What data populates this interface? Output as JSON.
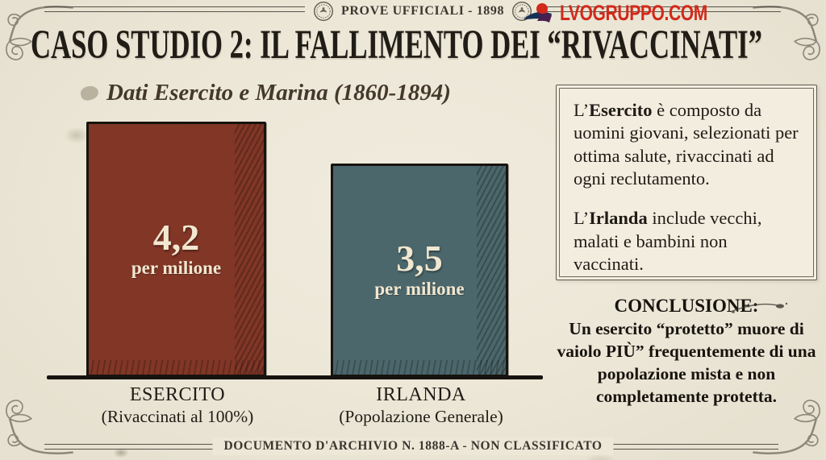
{
  "header": {
    "badge": "PROVE UFFICIALI - 1898",
    "logo_text": "LVOGRUPPO.COM",
    "logo_color": "#d2291a"
  },
  "title": "CASO STUDIO 2: IL FALLIMENTO DEI “RIVACCINATI”",
  "chart_data": {
    "type": "bar",
    "title": "Dati Esercito e Marina (1860-1894)",
    "categories": [
      "ESERCITO",
      "IRLANDA"
    ],
    "category_sublabels": [
      "(Rivaccinati al 100%)",
      "(Popolazione Generale)"
    ],
    "values": [
      4.2,
      3.5
    ],
    "value_labels": [
      "4,2",
      "3,5"
    ],
    "unit_label": "per milione",
    "bar_colors": [
      "#813626",
      "#4b676c"
    ],
    "ylim": [
      0,
      4.5
    ],
    "grid": false,
    "legend": false
  },
  "info_box": {
    "paragraphs": [
      {
        "prefix": "L’",
        "lead": "Esercito",
        "rest": " è composto da uomini giovani, selezionati per ottima salute, rivaccinati ad ogni reclutamento."
      },
      {
        "prefix": "L’",
        "lead": "Irlanda",
        "rest": " include vecchi, malati e bambini non vaccinati."
      }
    ]
  },
  "conclusion": {
    "heading": "CONCLUSIONE:",
    "body": "Un esercito “protetto” muore di vaiolo PIÙ” frequentemente di una popolazione mista e non completamente protetta."
  },
  "footer": "DOCUMENTO D'ARCHIVIO N. 1888-A - NON CLASSIFICATO"
}
